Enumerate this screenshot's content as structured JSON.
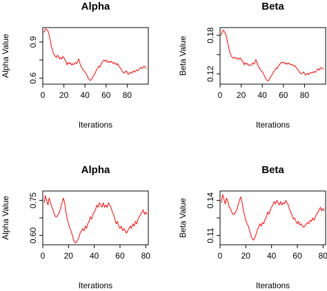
{
  "chart_data": [
    {
      "type": "line",
      "title": "Alpha",
      "xlabel": "Iterations",
      "ylabel": "Alpha Value",
      "color": "#ff0000",
      "grid": false,
      "xlim": [
        0,
        100
      ],
      "ylim": [
        0.55,
        1.02
      ],
      "xticks": [
        0,
        20,
        40,
        60,
        80
      ],
      "yticks": [
        0.6,
        0.75,
        0.9
      ],
      "ytick_labels": [
        "0.6",
        "",
        "0.9"
      ],
      "series": [
        {
          "x": [
            1,
            2,
            3,
            4,
            5,
            6,
            7,
            8,
            9,
            10,
            11,
            12,
            13,
            14,
            15,
            16,
            17,
            18,
            19,
            20,
            21,
            22,
            23,
            24,
            25,
            26,
            27,
            28,
            29,
            30,
            31,
            32,
            33,
            34,
            35,
            36,
            37,
            38,
            39,
            40,
            41,
            42,
            43,
            44,
            45,
            46,
            47,
            48,
            49,
            50,
            51,
            52,
            53,
            54,
            55,
            56,
            57,
            58,
            59,
            60,
            61,
            62,
            63,
            64,
            65,
            66,
            67,
            68,
            69,
            70,
            71,
            72,
            73,
            74,
            75,
            76,
            77,
            78,
            79,
            80,
            81,
            82,
            83,
            84,
            85,
            86,
            87,
            88,
            89,
            90,
            91,
            92,
            93,
            94,
            95,
            96,
            97,
            98
          ],
          "y": [
            0.98,
            1.0,
            1.01,
            1.0,
            0.99,
            0.96,
            0.92,
            0.87,
            0.84,
            0.81,
            0.79,
            0.78,
            0.77,
            0.79,
            0.78,
            0.76,
            0.77,
            0.76,
            0.78,
            0.77,
            0.75,
            0.74,
            0.71,
            0.73,
            0.72,
            0.73,
            0.71,
            0.72,
            0.71,
            0.72,
            0.73,
            0.72,
            0.74,
            0.76,
            0.73,
            0.7,
            0.69,
            0.67,
            0.66,
            0.65,
            0.64,
            0.62,
            0.6,
            0.59,
            0.58,
            0.59,
            0.6,
            0.62,
            0.63,
            0.65,
            0.67,
            0.68,
            0.7,
            0.69,
            0.71,
            0.73,
            0.74,
            0.75,
            0.74,
            0.75,
            0.74,
            0.73,
            0.74,
            0.73,
            0.74,
            0.73,
            0.72,
            0.73,
            0.72,
            0.71,
            0.72,
            0.7,
            0.69,
            0.68,
            0.66,
            0.65,
            0.64,
            0.65,
            0.66,
            0.65,
            0.63,
            0.64,
            0.65,
            0.64,
            0.65,
            0.66,
            0.65,
            0.66,
            0.67,
            0.66,
            0.67,
            0.68,
            0.69,
            0.68,
            0.69,
            0.7,
            0.69,
            0.68
          ]
        }
      ]
    },
    {
      "type": "line",
      "title": "Beta",
      "xlabel": "Iterations",
      "ylabel": "Beta Value",
      "color": "#ff0000",
      "grid": false,
      "xlim": [
        0,
        100
      ],
      "ylim": [
        0.104,
        0.192
      ],
      "xticks": [
        0,
        20,
        40,
        60,
        80
      ],
      "yticks": [
        0.12,
        0.15,
        0.18
      ],
      "ytick_labels": [
        "0.12",
        "",
        "0.18"
      ],
      "series": [
        {
          "x": [
            1,
            2,
            3,
            4,
            5,
            6,
            7,
            8,
            9,
            10,
            11,
            12,
            13,
            14,
            15,
            16,
            17,
            18,
            19,
            20,
            21,
            22,
            23,
            24,
            25,
            26,
            27,
            28,
            29,
            30,
            31,
            32,
            33,
            34,
            35,
            36,
            37,
            38,
            39,
            40,
            41,
            42,
            43,
            44,
            45,
            46,
            47,
            48,
            49,
            50,
            51,
            52,
            53,
            54,
            55,
            56,
            57,
            58,
            59,
            60,
            61,
            62,
            63,
            64,
            65,
            66,
            67,
            68,
            69,
            70,
            71,
            72,
            73,
            74,
            75,
            76,
            77,
            78,
            79,
            80,
            81,
            82,
            83,
            84,
            85,
            86,
            87,
            88,
            89,
            90,
            91,
            92,
            93,
            94,
            95,
            96,
            97,
            98
          ],
          "y": [
            0.18,
            0.185,
            0.188,
            0.186,
            0.183,
            0.178,
            0.17,
            0.162,
            0.155,
            0.15,
            0.147,
            0.145,
            0.144,
            0.146,
            0.145,
            0.143,
            0.144,
            0.143,
            0.145,
            0.143,
            0.14,
            0.138,
            0.134,
            0.137,
            0.135,
            0.136,
            0.133,
            0.134,
            0.133,
            0.135,
            0.137,
            0.135,
            0.138,
            0.142,
            0.137,
            0.132,
            0.13,
            0.127,
            0.125,
            0.123,
            0.121,
            0.117,
            0.113,
            0.111,
            0.109,
            0.11,
            0.112,
            0.116,
            0.118,
            0.121,
            0.124,
            0.126,
            0.129,
            0.128,
            0.131,
            0.134,
            0.136,
            0.138,
            0.137,
            0.138,
            0.137,
            0.135,
            0.137,
            0.135,
            0.137,
            0.135,
            0.134,
            0.135,
            0.133,
            0.132,
            0.133,
            0.13,
            0.128,
            0.126,
            0.123,
            0.121,
            0.12,
            0.121,
            0.123,
            0.121,
            0.118,
            0.119,
            0.121,
            0.119,
            0.121,
            0.122,
            0.121,
            0.122,
            0.124,
            0.122,
            0.124,
            0.126,
            0.128,
            0.126,
            0.128,
            0.13,
            0.128,
            0.127
          ]
        }
      ]
    },
    {
      "type": "line",
      "title": "Alpha",
      "xlabel": "Iterations",
      "ylabel": "Alpha Value",
      "color": "#ff0000",
      "grid": false,
      "xlim": [
        0,
        82
      ],
      "ylim": [
        0.56,
        0.79
      ],
      "xticks": [
        0,
        20,
        40,
        60,
        80
      ],
      "yticks": [
        0.6,
        0.675,
        0.75
      ],
      "ytick_labels": [
        "0.60",
        "",
        "0.75"
      ],
      "series": [
        {
          "x": [
            1,
            2,
            3,
            4,
            5,
            6,
            7,
            8,
            9,
            10,
            11,
            12,
            13,
            14,
            15,
            16,
            17,
            18,
            19,
            20,
            21,
            22,
            23,
            24,
            25,
            26,
            27,
            28,
            29,
            30,
            31,
            32,
            33,
            34,
            35,
            36,
            37,
            38,
            39,
            40,
            41,
            42,
            43,
            44,
            45,
            46,
            47,
            48,
            49,
            50,
            51,
            52,
            53,
            54,
            55,
            56,
            57,
            58,
            59,
            60,
            61,
            62,
            63,
            64,
            65,
            66,
            67,
            68,
            69,
            70,
            71,
            72,
            73,
            74,
            75,
            76,
            77,
            78,
            79,
            80,
            81
          ],
          "y": [
            0.74,
            0.77,
            0.75,
            0.73,
            0.76,
            0.74,
            0.72,
            0.71,
            0.69,
            0.68,
            0.68,
            0.69,
            0.7,
            0.72,
            0.74,
            0.76,
            0.74,
            0.7,
            0.67,
            0.65,
            0.63,
            0.62,
            0.6,
            0.58,
            0.57,
            0.57,
            0.58,
            0.59,
            0.61,
            0.62,
            0.63,
            0.62,
            0.64,
            0.63,
            0.65,
            0.66,
            0.68,
            0.67,
            0.69,
            0.7,
            0.71,
            0.73,
            0.72,
            0.74,
            0.73,
            0.72,
            0.74,
            0.72,
            0.73,
            0.72,
            0.74,
            0.73,
            0.72,
            0.7,
            0.69,
            0.67,
            0.65,
            0.66,
            0.64,
            0.63,
            0.64,
            0.62,
            0.63,
            0.62,
            0.61,
            0.62,
            0.63,
            0.64,
            0.63,
            0.65,
            0.64,
            0.66,
            0.65,
            0.67,
            0.68,
            0.69,
            0.7,
            0.71,
            0.69,
            0.7,
            0.69
          ]
        }
      ]
    },
    {
      "type": "line",
      "title": "Beta",
      "xlabel": "Iterations",
      "ylabel": "Beta Value",
      "color": "#ff0000",
      "grid": false,
      "xlim": [
        0,
        82
      ],
      "ylim": [
        0.102,
        0.148
      ],
      "xticks": [
        0,
        20,
        40,
        60,
        80
      ],
      "yticks": [
        0.11,
        0.125,
        0.14
      ],
      "ytick_labels": [
        "0.11",
        "",
        "0.14"
      ],
      "series": [
        {
          "x": [
            1,
            2,
            3,
            4,
            5,
            6,
            7,
            8,
            9,
            10,
            11,
            12,
            13,
            14,
            15,
            16,
            17,
            18,
            19,
            20,
            21,
            22,
            23,
            24,
            25,
            26,
            27,
            28,
            29,
            30,
            31,
            32,
            33,
            34,
            35,
            36,
            37,
            38,
            39,
            40,
            41,
            42,
            43,
            44,
            45,
            46,
            47,
            48,
            49,
            50,
            51,
            52,
            53,
            54,
            55,
            56,
            57,
            58,
            59,
            60,
            61,
            62,
            63,
            64,
            65,
            66,
            67,
            68,
            69,
            70,
            71,
            72,
            73,
            74,
            75,
            76,
            77,
            78,
            79,
            80,
            81
          ],
          "y": [
            0.138,
            0.145,
            0.141,
            0.137,
            0.142,
            0.139,
            0.135,
            0.133,
            0.13,
            0.128,
            0.128,
            0.13,
            0.132,
            0.136,
            0.14,
            0.143,
            0.139,
            0.132,
            0.127,
            0.123,
            0.12,
            0.118,
            0.114,
            0.11,
            0.107,
            0.106,
            0.108,
            0.111,
            0.115,
            0.117,
            0.12,
            0.118,
            0.121,
            0.12,
            0.124,
            0.126,
            0.13,
            0.128,
            0.132,
            0.134,
            0.136,
            0.139,
            0.137,
            0.14,
            0.138,
            0.136,
            0.139,
            0.136,
            0.138,
            0.137,
            0.14,
            0.138,
            0.136,
            0.132,
            0.13,
            0.127,
            0.124,
            0.125,
            0.122,
            0.12,
            0.122,
            0.119,
            0.12,
            0.118,
            0.117,
            0.118,
            0.12,
            0.121,
            0.12,
            0.123,
            0.122,
            0.125,
            0.123,
            0.126,
            0.128,
            0.13,
            0.132,
            0.134,
            0.131,
            0.133,
            0.131
          ]
        }
      ]
    }
  ]
}
